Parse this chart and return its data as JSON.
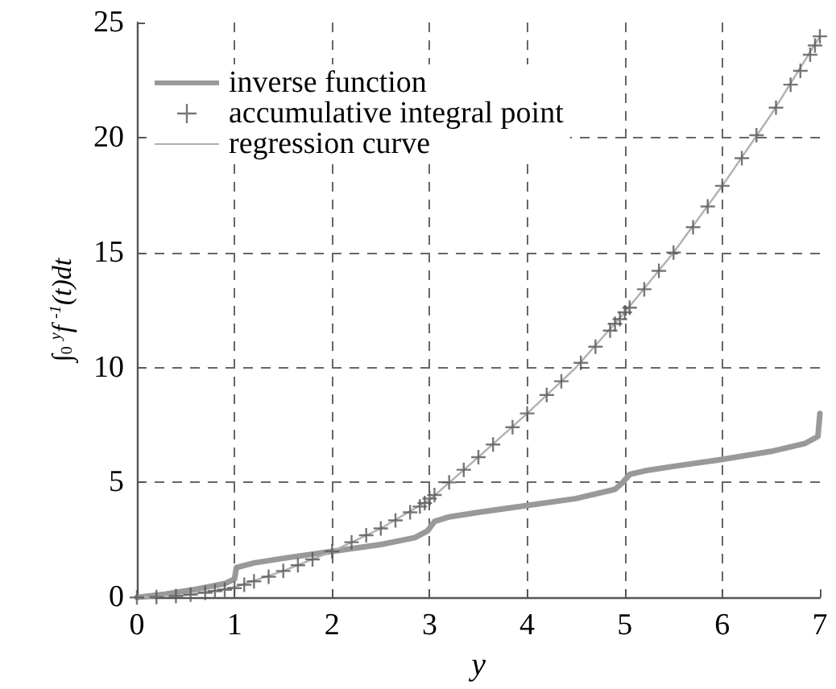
{
  "chart_data": {
    "type": "line",
    "xlabel": "y",
    "ylabel": "∫$_{0}$$^{y}$f$^{-1}$(t)dt",
    "xlim": [
      0,
      7
    ],
    "xticks": [
      0,
      1,
      2,
      3,
      4,
      5,
      6,
      7
    ],
    "ylim": [
      0,
      25
    ],
    "yticks": [
      0,
      5,
      10,
      15,
      20,
      25
    ],
    "grid": true,
    "legend": "top left",
    "line_style": "solid",
    "series": [
      {
        "name": "inverse function",
        "marker": "none",
        "color": "#999999",
        "x": [
          0,
          0.3,
          0.6,
          0.9,
          1.0,
          1.02,
          1.2,
          1.5,
          2.0,
          2.5,
          2.85,
          2.98,
          3.05,
          3.2,
          3.5,
          4.0,
          4.5,
          4.9,
          4.98,
          5.05,
          5.2,
          5.5,
          6.0,
          6.5,
          6.85,
          6.98,
          7.0
        ],
        "values": [
          0,
          0.15,
          0.35,
          0.6,
          0.8,
          1.3,
          1.5,
          1.7,
          2.0,
          2.3,
          2.6,
          2.9,
          3.3,
          3.5,
          3.7,
          4.0,
          4.3,
          4.7,
          5.0,
          5.35,
          5.5,
          5.7,
          6.0,
          6.35,
          6.7,
          7.0,
          8.0
        ]
      },
      {
        "name": "accumulative integral point",
        "type": "scatter",
        "marker": "cross",
        "color": "#555555",
        "x": [
          0,
          0.2,
          0.4,
          0.55,
          0.7,
          0.8,
          0.9,
          1.0,
          1.1,
          1.2,
          1.35,
          1.5,
          1.65,
          1.8,
          2.0,
          2.2,
          2.35,
          2.5,
          2.65,
          2.8,
          2.9,
          2.95,
          3.0,
          3.05,
          3.2,
          3.35,
          3.5,
          3.65,
          3.85,
          4.0,
          4.2,
          4.35,
          4.55,
          4.7,
          4.85,
          4.9,
          4.95,
          5.0,
          5.05,
          5.2,
          5.35,
          5.5,
          5.7,
          5.85,
          6.0,
          6.2,
          6.35,
          6.55,
          6.7,
          6.8,
          6.9,
          6.95,
          7.0
        ],
        "values": [
          0,
          0.02,
          0.06,
          0.12,
          0.2,
          0.27,
          0.33,
          0.4,
          0.55,
          0.7,
          0.9,
          1.15,
          1.4,
          1.65,
          2.0,
          2.4,
          2.7,
          3.0,
          3.35,
          3.7,
          3.95,
          4.1,
          4.3,
          4.45,
          5.0,
          5.55,
          6.1,
          6.65,
          7.4,
          8.0,
          8.8,
          9.4,
          10.2,
          10.9,
          11.6,
          11.9,
          12.1,
          12.4,
          12.6,
          13.4,
          14.2,
          15.0,
          16.1,
          17.0,
          17.9,
          19.1,
          20.1,
          21.3,
          22.3,
          22.9,
          23.6,
          24.0,
          24.4
        ]
      },
      {
        "name": "regression curve",
        "marker": "none",
        "color": "#b0b0b0",
        "x": [
          0,
          0.5,
          1.0,
          1.5,
          2.0,
          2.5,
          3.0,
          3.5,
          4.0,
          4.5,
          5.0,
          5.5,
          6.0,
          6.5,
          7.0
        ],
        "values": [
          0,
          0.1,
          0.45,
          1.15,
          2.0,
          3.0,
          4.25,
          6.1,
          8.0,
          10.0,
          12.4,
          15.0,
          17.9,
          21.0,
          24.4
        ]
      }
    ]
  }
}
